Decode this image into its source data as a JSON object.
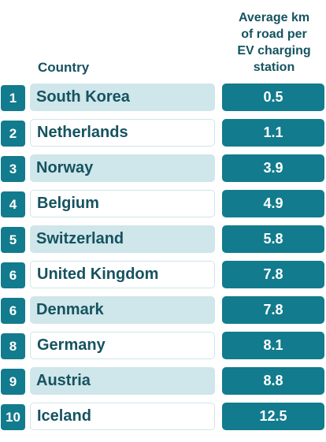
{
  "chart_data": {
    "type": "table",
    "columns": [
      "",
      "Country",
      "Average km of road per EV charging station"
    ],
    "header_country": "Country",
    "header_metric_lines": [
      "Average km",
      "of road per",
      "EV charging",
      "station"
    ],
    "rows": [
      {
        "rank": "1",
        "country": "South Korea",
        "value": "0.5"
      },
      {
        "rank": "2",
        "country": "Netherlands",
        "value": "1.1"
      },
      {
        "rank": "3",
        "country": "Norway",
        "value": "3.9"
      },
      {
        "rank": "4",
        "country": "Belgium",
        "value": "4.9"
      },
      {
        "rank": "5",
        "country": "Switzerland",
        "value": "5.8"
      },
      {
        "rank": "6",
        "country": "United Kingdom",
        "value": "7.8"
      },
      {
        "rank": "6",
        "country": "Denmark",
        "value": "7.8"
      },
      {
        "rank": "8",
        "country": "Germany",
        "value": "8.1"
      },
      {
        "rank": "9",
        "country": "Austria",
        "value": "8.8"
      },
      {
        "rank": "10",
        "country": "Iceland",
        "value": "12.5"
      }
    ]
  },
  "colors": {
    "dark_teal": "#127b8d",
    "light_teal": "#cfe6ea",
    "text_dark": "#155360"
  }
}
